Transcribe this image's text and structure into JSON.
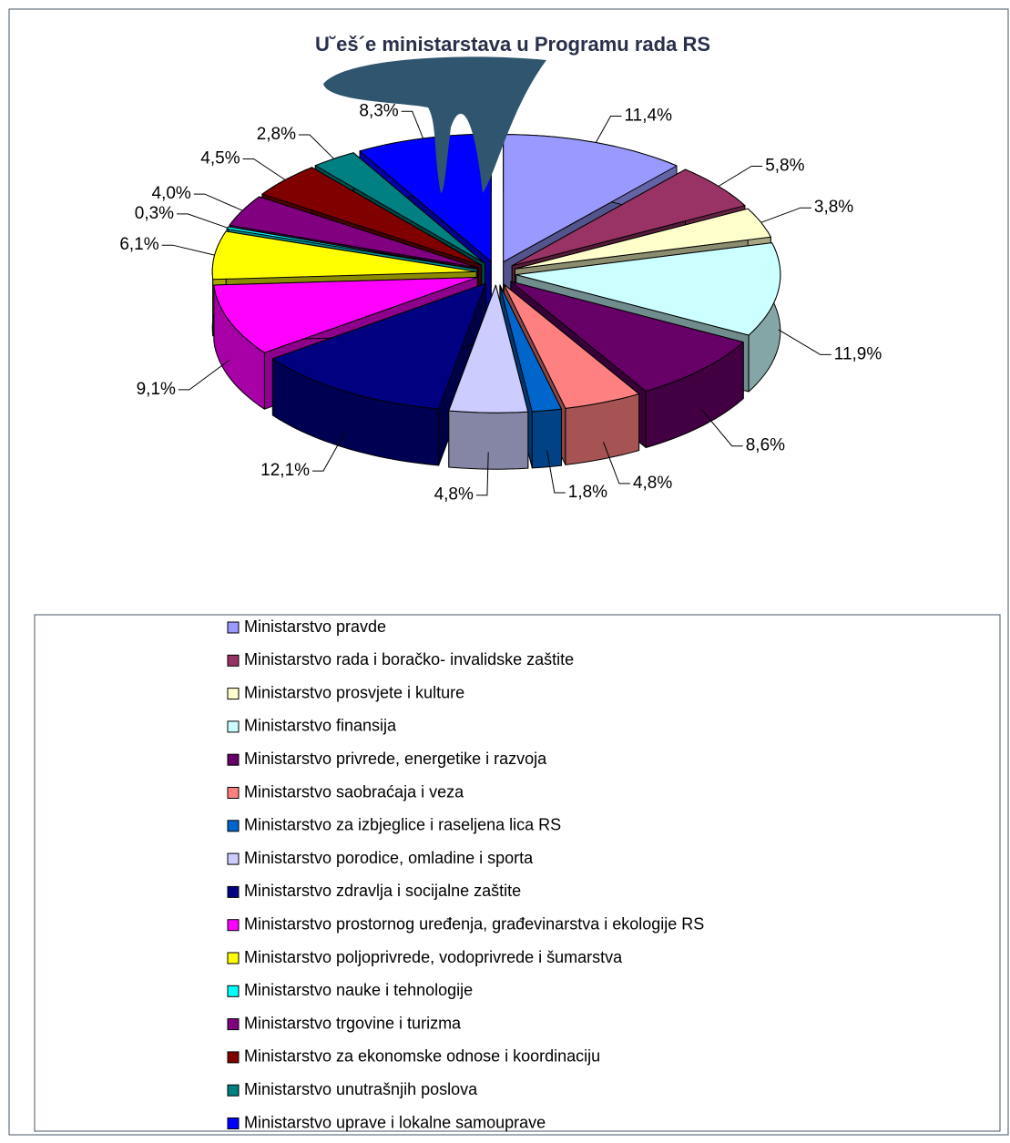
{
  "chart_data": {
    "type": "pie",
    "title": "U˘eš´e ministarstava u Programu rada RS",
    "categories": [
      "Ministarstvo pravde",
      "Ministarstvo rada i boračko- invalidske zaštite",
      "Ministarstvo prosvjete i kulture",
      "Ministarstvo finansija",
      "Ministarstvo privrede, energetike i razvoja",
      "Ministarstvo saobraćaja i veza",
      "Ministarstvo za izbjeglice i raseljena lica RS",
      "Ministarstvo porodice, omladine i sporta",
      "Ministarstvo zdravlja i socijalne zaštite",
      "Ministarstvo prostornog uređenja, građevinarstva i ekologije RS",
      "Ministarstvo poljoprivrede, vodoprivrede i šumarstva",
      "Ministarstvo nauke i tehnologije",
      "Ministarstvo trgovine i turizma",
      "Ministarstvo za ekonomske odnose i koordinaciju",
      "Ministarstvo unutrašnjih poslova",
      "Ministarstvo uprave i lokalne samouprave"
    ],
    "values": [
      11.4,
      5.8,
      3.8,
      11.9,
      8.6,
      4.8,
      1.8,
      4.8,
      12.1,
      9.1,
      6.1,
      0.3,
      4.0,
      4.5,
      2.8,
      8.3
    ],
    "value_labels": [
      "11,4%",
      "5,8%",
      "3,8%",
      "11,9%",
      "8,6%",
      "4,8%",
      "1,8%",
      "4,8%",
      "12,1%",
      "9,1%",
      "6,1%",
      "0,3%",
      "4,0%",
      "4,5%",
      "2,8%",
      "8,3%"
    ],
    "colors": [
      "#9999ff",
      "#993366",
      "#ffffcc",
      "#ccffff",
      "#660066",
      "#ff8080",
      "#0066cc",
      "#ccccff",
      "#000080",
      "#ff00ff",
      "#ffff00",
      "#00ffff",
      "#800080",
      "#800000",
      "#008080",
      "#0000ff"
    ],
    "legend": "bottom"
  }
}
